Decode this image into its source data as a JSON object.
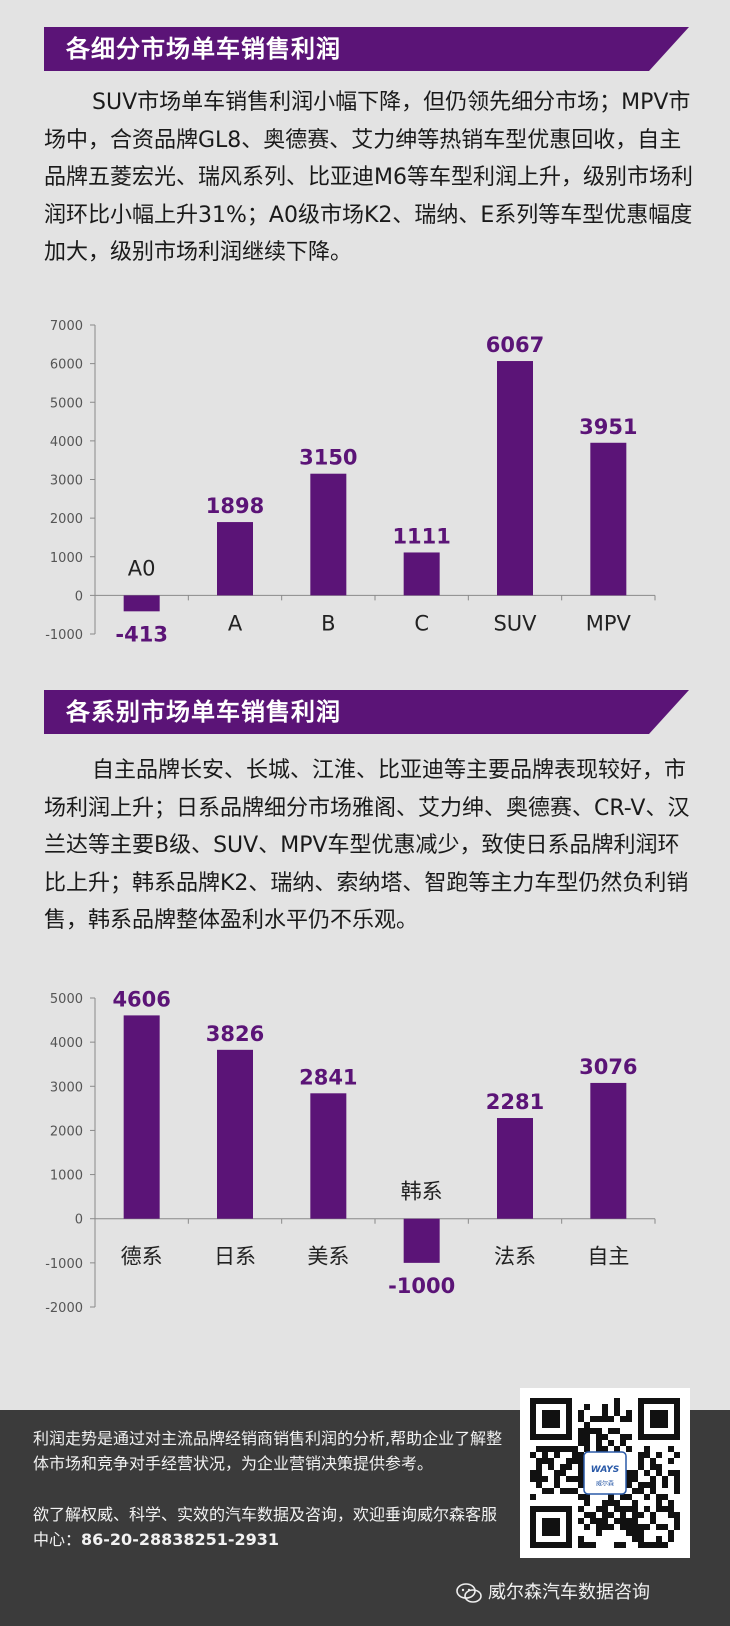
{
  "section1": {
    "title": "各细分市场单车销售利润",
    "paragraph": "SUV市场单车销售利润小幅下降，但仍领先细分市场；MPV市场中，合资品牌GL8、奥德赛、艾力绅等热销车型优惠回收，自主品牌五菱宏光、瑞风系列、比亚迪M6等车型利润上升，级别市场利润环比小幅上升31%；A0级市场K2、瑞纳、E系列等车型优惠幅度加大，级别市场利润继续下降。"
  },
  "section2": {
    "title": "各系别市场单车销售利润",
    "paragraph": "自主品牌长安、长城、江淮、比亚迪等主要品牌表现较好，市场利润上升；日系品牌细分市场雅阁、艾力绅、奥德赛、CR-V、汉兰达等主要B级、SUV、MPV车型优惠减少，致使日系品牌利润环比上升；韩系品牌K2、瑞纳、索纳塔、智跑等主力车型仍然负利销售，韩系品牌整体盈利水平仍不乐观。"
  },
  "chart_data": [
    {
      "type": "bar",
      "categories": [
        "A0",
        "A",
        "B",
        "C",
        "SUV",
        "MPV"
      ],
      "values": [
        -413,
        1898,
        3150,
        1111,
        6067,
        3951
      ],
      "ylim": [
        -1000,
        7000
      ],
      "yticks": [
        7000,
        6000,
        5000,
        4000,
        3000,
        2000,
        1000,
        0,
        -1000
      ],
      "bar_color": "#5b1477",
      "label_color": "#5b1477",
      "grid": false
    },
    {
      "type": "bar",
      "categories": [
        "德系",
        "日系",
        "美系",
        "韩系",
        "法系",
        "自主"
      ],
      "values": [
        4606,
        3826,
        2841,
        -1000,
        2281,
        3076
      ],
      "ylim": [
        -2000,
        5000
      ],
      "yticks": [
        5000,
        4000,
        3000,
        2000,
        1000,
        0,
        -1000,
        -2000
      ],
      "bar_color": "#5b1477",
      "label_color": "#5b1477",
      "grid": false
    }
  ],
  "footer": {
    "intro": "利润走势是通过对主流品牌经销商销售利润的分析,帮助企业了解整体市场和竞争对手经营状况，为企业营销决策提供参考。",
    "contact_prefix": "欲了解权威、科学、实效的汽车数据及咨询，欢迎垂询威尔森客服中心：",
    "phone": "86-20-28838251-2931",
    "qr_logo": "WAYS",
    "qr_logo_sub": "威尔森",
    "wechat_name": "威尔森汽车数据咨询"
  },
  "colors": {
    "accent": "#5b1477",
    "footer_bg": "#3b3b3b",
    "page_bg": "#e3e3e3"
  }
}
